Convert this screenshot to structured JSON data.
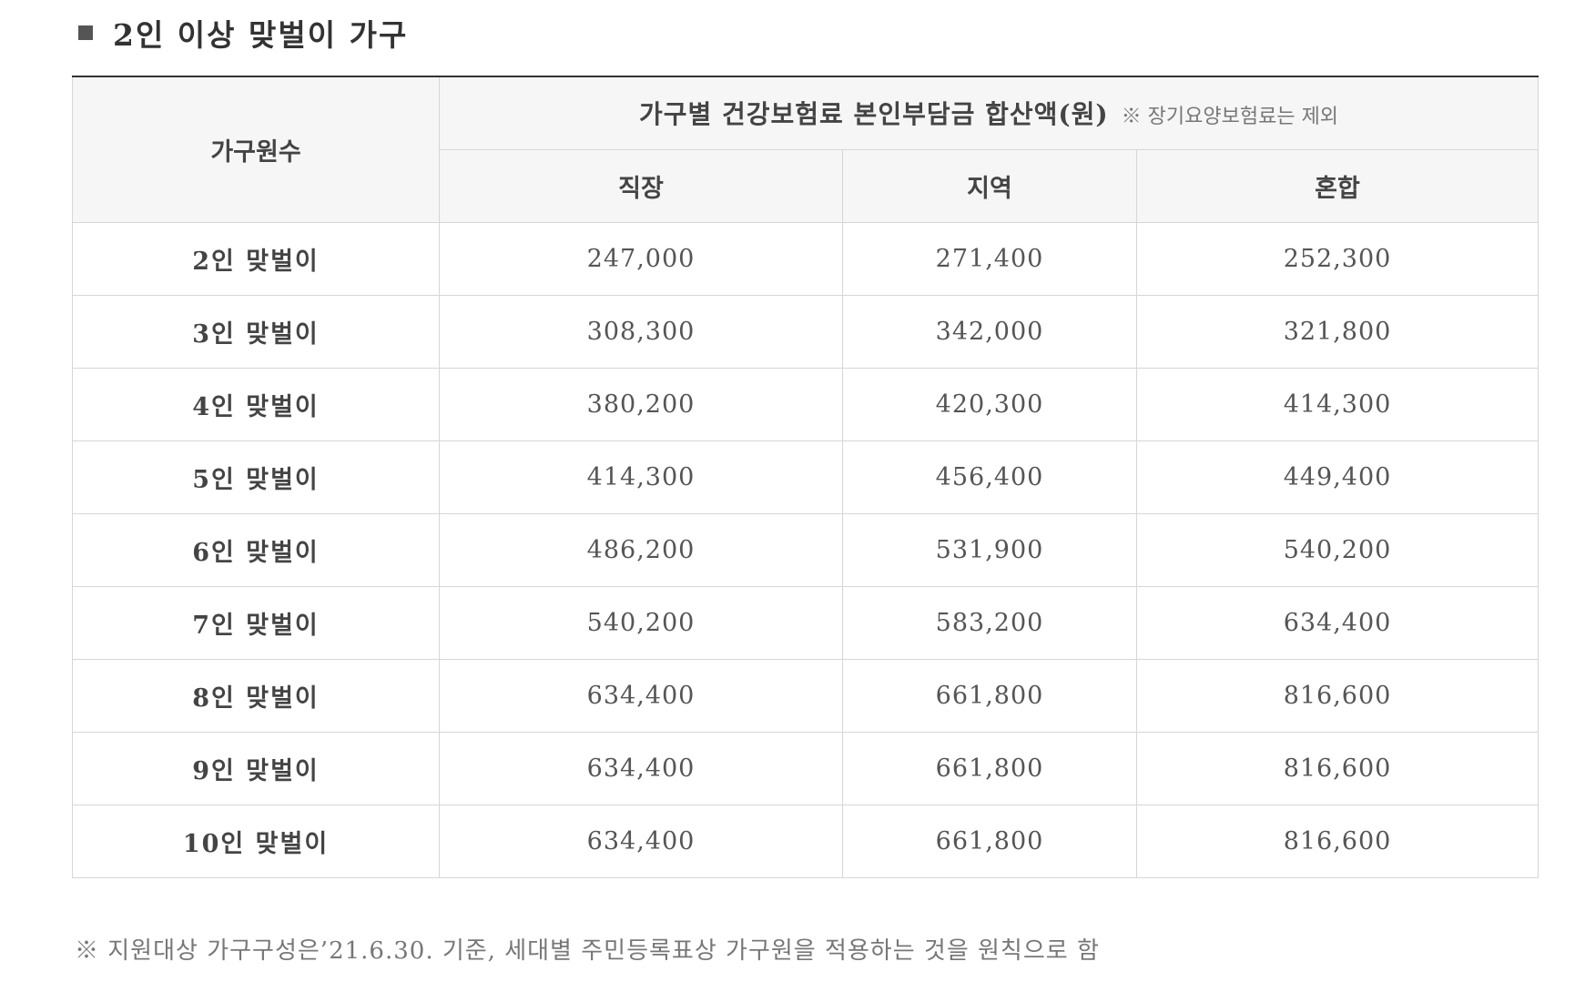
{
  "section": {
    "title": "2인 이상 맞벌이 가구"
  },
  "table": {
    "row_header": "가구원수",
    "group_header": "가구별 건강보험료 본인부담금 합산액(원)",
    "group_note": "※ 장기요양보험료는 제외",
    "columns": [
      "직장",
      "지역",
      "혼합"
    ],
    "rows": [
      {
        "label": "2인 맞벌이",
        "values": [
          "247,000",
          "271,400",
          "252,300"
        ]
      },
      {
        "label": "3인 맞벌이",
        "values": [
          "308,300",
          "342,000",
          "321,800"
        ]
      },
      {
        "label": "4인 맞벌이",
        "values": [
          "380,200",
          "420,300",
          "414,300"
        ]
      },
      {
        "label": "5인 맞벌이",
        "values": [
          "414,300",
          "456,400",
          "449,400"
        ]
      },
      {
        "label": "6인 맞벌이",
        "values": [
          "486,200",
          "531,900",
          "540,200"
        ]
      },
      {
        "label": "7인 맞벌이",
        "values": [
          "540,200",
          "583,200",
          "634,400"
        ]
      },
      {
        "label": "8인 맞벌이",
        "values": [
          "634,400",
          "661,800",
          "816,600"
        ]
      },
      {
        "label": "9인 맞벌이",
        "values": [
          "634,400",
          "661,800",
          "816,600"
        ]
      },
      {
        "label": "10인 맞벌이",
        "values": [
          "634,400",
          "661,800",
          "816,600"
        ]
      }
    ]
  },
  "footnote": "※ 지원대상 가구구성은’21.6.30. 기준, 세대별 주민등록표상 가구원을 적용하는 것을 원칙으로 함"
}
